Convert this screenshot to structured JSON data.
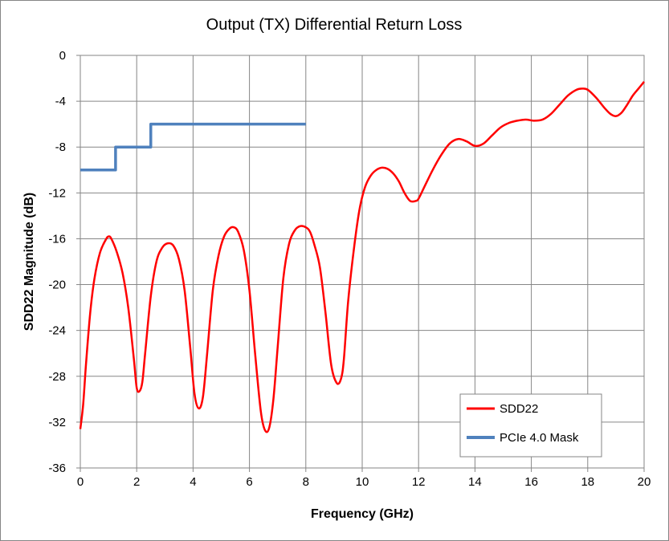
{
  "chart_data": {
    "type": "line",
    "title": "Output (TX) Differential Return Loss",
    "xlabel": "Frequency (GHz)",
    "ylabel": "SDD22 Magnitude (dB)",
    "xlim": [
      0,
      20
    ],
    "ylim": [
      -36,
      0
    ],
    "xticks": [
      0,
      2,
      4,
      6,
      8,
      10,
      12,
      14,
      16,
      18,
      20
    ],
    "yticks": [
      0,
      -4,
      -8,
      -12,
      -16,
      -20,
      -24,
      -28,
      -32,
      -36
    ],
    "grid": "on",
    "legend_position": "bottom-right",
    "series": [
      {
        "name": "SDD22",
        "color": "#ff0000",
        "x": [
          0,
          0.1,
          0.2,
          0.35,
          0.5,
          0.7,
          0.9,
          1.0,
          1.1,
          1.3,
          1.5,
          1.7,
          1.9,
          2.0,
          2.1,
          2.2,
          2.3,
          2.5,
          2.7,
          2.9,
          3.1,
          3.3,
          3.5,
          3.7,
          3.9,
          4.05,
          4.2,
          4.35,
          4.5,
          4.7,
          4.9,
          5.1,
          5.3,
          5.45,
          5.6,
          5.8,
          6.0,
          6.2,
          6.4,
          6.55,
          6.7,
          6.85,
          7.0,
          7.2,
          7.4,
          7.6,
          7.8,
          8.0,
          8.15,
          8.3,
          8.5,
          8.7,
          8.9,
          9.1,
          9.25,
          9.35,
          9.5,
          9.7,
          9.9,
          10.1,
          10.3,
          10.5,
          10.7,
          10.9,
          11.1,
          11.3,
          11.5,
          11.7,
          11.9,
          12.0,
          12.2,
          12.5,
          12.8,
          13.1,
          13.4,
          13.7,
          14.0,
          14.3,
          14.6,
          14.9,
          15.2,
          15.5,
          15.8,
          16.1,
          16.4,
          16.7,
          17.0,
          17.3,
          17.6,
          17.8,
          18.0,
          18.3,
          18.6,
          18.8,
          19.0,
          19.2,
          19.4,
          19.6,
          19.8,
          20.0
        ],
        "values": [
          -32.6,
          -30.5,
          -27.0,
          -22.5,
          -19.5,
          -17.2,
          -16.1,
          -15.8,
          -16.0,
          -17.2,
          -19.0,
          -22.0,
          -26.5,
          -29.0,
          -29.3,
          -28.5,
          -26.0,
          -21.0,
          -18.0,
          -16.8,
          -16.4,
          -16.6,
          -17.8,
          -20.5,
          -25.5,
          -29.5,
          -30.8,
          -29.8,
          -26.0,
          -20.5,
          -17.5,
          -15.8,
          -15.1,
          -15.0,
          -15.4,
          -17.0,
          -20.5,
          -26.0,
          -31.0,
          -32.7,
          -32.5,
          -30.0,
          -25.5,
          -19.5,
          -16.5,
          -15.3,
          -14.9,
          -15.0,
          -15.4,
          -16.5,
          -18.5,
          -22.5,
          -27.0,
          -28.6,
          -28.2,
          -26.5,
          -21.5,
          -17.0,
          -13.5,
          -11.5,
          -10.5,
          -10.0,
          -9.8,
          -9.9,
          -10.3,
          -11.0,
          -12.0,
          -12.7,
          -12.7,
          -12.5,
          -11.5,
          -10.0,
          -8.7,
          -7.7,
          -7.3,
          -7.5,
          -7.9,
          -7.7,
          -7.0,
          -6.3,
          -5.9,
          -5.7,
          -5.6,
          -5.7,
          -5.6,
          -5.1,
          -4.3,
          -3.5,
          -3.0,
          -2.9,
          -3.0,
          -3.7,
          -4.6,
          -5.1,
          -5.3,
          -5.0,
          -4.3,
          -3.5,
          -2.9,
          -2.3
        ]
      },
      {
        "name": "PCIe 4.0 Mask",
        "color": "#4f81bd",
        "x": [
          0,
          1.25,
          1.25,
          2.5,
          2.5,
          8.0
        ],
        "values": [
          -10,
          -10,
          -8,
          -8,
          -6,
          -6
        ]
      }
    ]
  }
}
